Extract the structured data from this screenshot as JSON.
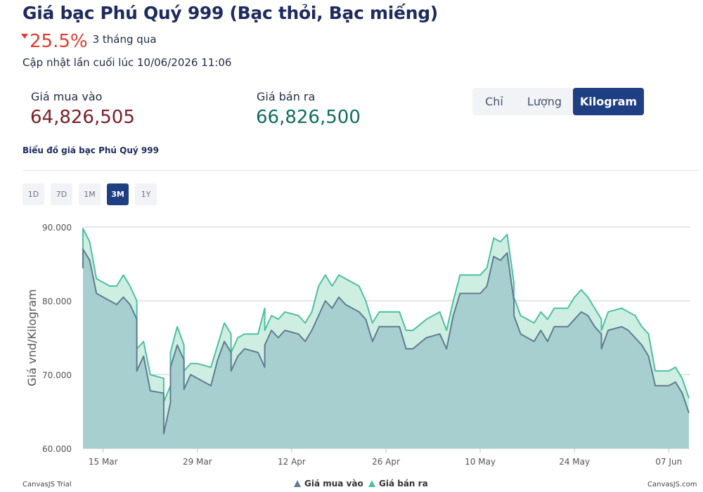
{
  "header": {
    "title": "Giá bạc Phú Quý 999 (Bạc thỏi, Bạc miếng)",
    "change_value": "25.5%",
    "change_period": "3 tháng qua",
    "updated": "Cập nhật lần cuối lúc 10/06/2026 11:06"
  },
  "prices": {
    "buy_label": "Giá mua vào",
    "buy_value": "64,826,505",
    "sell_label": "Giá bán ra",
    "sell_value": "66,826,500"
  },
  "units": {
    "items": [
      "Chỉ",
      "Lượng",
      "Kilogram"
    ],
    "active": "Kilogram"
  },
  "chart_title": "Biểu đồ giá bạc Phú Quý 999",
  "ranges": {
    "items": [
      "1D",
      "7D",
      "1M",
      "3M",
      "1Y"
    ],
    "active": "3M"
  },
  "colors": {
    "buy_line": "#5f7c92",
    "sell_line": "#4fbfa0",
    "buy_fill": "#a8cfcf",
    "sell_fill": "#cdeee0",
    "accent": "#1e3f82"
  },
  "chart_data": {
    "type": "area",
    "ylabel": "Giá vnd/Kilogram",
    "xlabel": "",
    "ylim": [
      60000,
      92000
    ],
    "yticks": [
      60000,
      70000,
      80000,
      90000
    ],
    "ytick_labels": [
      "60.000",
      "70.000",
      "80.000",
      "90.000"
    ],
    "xlim": [
      "2026-03-12",
      "2026-06-10"
    ],
    "xticks": [
      "2026-03-15",
      "2026-03-29",
      "2026-04-12",
      "2026-04-26",
      "2026-05-10",
      "2026-05-24",
      "2026-06-07"
    ],
    "xtick_labels": [
      "15 Mar",
      "29 Mar",
      "12 Apr",
      "26 Apr",
      "10 May",
      "24 May",
      "07 Jun"
    ],
    "grid": true,
    "legend_position": "bottom",
    "series": [
      {
        "name": "Giá mua vào",
        "points": [
          [
            "2026-03-12",
            84400
          ],
          [
            "2026-03-12",
            87000
          ],
          [
            "2026-03-13",
            85500
          ],
          [
            "2026-03-14",
            81000
          ],
          [
            "2026-03-16",
            80000
          ],
          [
            "2026-03-17",
            79500
          ],
          [
            "2026-03-18",
            80500
          ],
          [
            "2026-03-19",
            79500
          ],
          [
            "2026-03-20",
            77500
          ],
          [
            "2026-03-20",
            70500
          ],
          [
            "2026-03-21",
            72500
          ],
          [
            "2026-03-22",
            67800
          ],
          [
            "2026-03-24",
            67500
          ],
          [
            "2026-03-24",
            66800
          ],
          [
            "2026-03-24",
            62000
          ],
          [
            "2026-03-25",
            66200
          ],
          [
            "2026-03-25",
            71000
          ],
          [
            "2026-03-26",
            74000
          ],
          [
            "2026-03-27",
            72000
          ],
          [
            "2026-03-27",
            68000
          ],
          [
            "2026-03-28",
            70000
          ],
          [
            "2026-03-29",
            69500
          ],
          [
            "2026-03-31",
            68500
          ],
          [
            "2026-04-01",
            72000
          ],
          [
            "2026-04-02",
            74500
          ],
          [
            "2026-04-03",
            73000
          ],
          [
            "2026-04-03",
            70500
          ],
          [
            "2026-04-04",
            72500
          ],
          [
            "2026-04-05",
            73500
          ],
          [
            "2026-04-07",
            73000
          ],
          [
            "2026-04-08",
            71000
          ],
          [
            "2026-04-08",
            74000
          ],
          [
            "2026-04-09",
            76000
          ],
          [
            "2026-04-10",
            75000
          ],
          [
            "2026-04-11",
            76000
          ],
          [
            "2026-04-13",
            75500
          ],
          [
            "2026-04-14",
            74500
          ],
          [
            "2026-04-15",
            76000
          ],
          [
            "2026-04-16",
            78000
          ],
          [
            "2026-04-17",
            80000
          ],
          [
            "2026-04-18",
            79000
          ],
          [
            "2026-04-19",
            80500
          ],
          [
            "2026-04-20",
            79500
          ],
          [
            "2026-04-22",
            78500
          ],
          [
            "2026-04-23",
            77500
          ],
          [
            "2026-04-24",
            74500
          ],
          [
            "2026-04-25",
            76500
          ],
          [
            "2026-04-28",
            76500
          ],
          [
            "2026-04-29",
            73500
          ],
          [
            "2026-04-30",
            73500
          ],
          [
            "2026-05-02",
            75000
          ],
          [
            "2026-05-04",
            75500
          ],
          [
            "2026-05-05",
            73500
          ],
          [
            "2026-05-06",
            78000
          ],
          [
            "2026-05-07",
            81000
          ],
          [
            "2026-05-10",
            81000
          ],
          [
            "2026-05-11",
            82000
          ],
          [
            "2026-05-12",
            86000
          ],
          [
            "2026-05-13",
            85500
          ],
          [
            "2026-05-14",
            86500
          ],
          [
            "2026-05-15",
            80000
          ],
          [
            "2026-05-15",
            78000
          ],
          [
            "2026-05-16",
            75500
          ],
          [
            "2026-05-18",
            74500
          ],
          [
            "2026-05-19",
            76000
          ],
          [
            "2026-05-20",
            74500
          ],
          [
            "2026-05-21",
            76500
          ],
          [
            "2026-05-23",
            76500
          ],
          [
            "2026-05-24",
            77500
          ],
          [
            "2026-05-25",
            78500
          ],
          [
            "2026-05-26",
            78000
          ],
          [
            "2026-05-27",
            76500
          ],
          [
            "2026-05-28",
            75500
          ],
          [
            "2026-05-28",
            73500
          ],
          [
            "2026-05-29",
            76000
          ],
          [
            "2026-05-31",
            76500
          ],
          [
            "2026-06-01",
            76000
          ],
          [
            "2026-06-02",
            75000
          ],
          [
            "2026-06-03",
            74000
          ],
          [
            "2026-06-04",
            72500
          ],
          [
            "2026-06-05",
            68500
          ],
          [
            "2026-06-07",
            68500
          ],
          [
            "2026-06-08",
            69000
          ],
          [
            "2026-06-09",
            67500
          ],
          [
            "2026-06-10",
            64800
          ]
        ]
      },
      {
        "name": "Giá bán ra",
        "points": [
          [
            "2026-03-12",
            86000
          ],
          [
            "2026-03-12",
            89800
          ],
          [
            "2026-03-13",
            88000
          ],
          [
            "2026-03-14",
            83000
          ],
          [
            "2026-03-16",
            82000
          ],
          [
            "2026-03-17",
            82000
          ],
          [
            "2026-03-18",
            83500
          ],
          [
            "2026-03-19",
            82000
          ],
          [
            "2026-03-20",
            80000
          ],
          [
            "2026-03-20",
            73500
          ],
          [
            "2026-03-21",
            74500
          ],
          [
            "2026-03-22",
            70000
          ],
          [
            "2026-03-24",
            69500
          ],
          [
            "2026-03-24",
            66300
          ],
          [
            "2026-03-25",
            68500
          ],
          [
            "2026-03-25",
            73000
          ],
          [
            "2026-03-26",
            76500
          ],
          [
            "2026-03-27",
            74000
          ],
          [
            "2026-03-27",
            70500
          ],
          [
            "2026-03-28",
            71500
          ],
          [
            "2026-03-29",
            71500
          ],
          [
            "2026-03-31",
            71000
          ],
          [
            "2026-04-01",
            74000
          ],
          [
            "2026-04-02",
            77000
          ],
          [
            "2026-04-03",
            75500
          ],
          [
            "2026-04-03",
            73000
          ],
          [
            "2026-04-04",
            75000
          ],
          [
            "2026-04-05",
            75500
          ],
          [
            "2026-04-07",
            75500
          ],
          [
            "2026-04-08",
            79000
          ],
          [
            "2026-04-08",
            76000
          ],
          [
            "2026-04-09",
            78000
          ],
          [
            "2026-04-10",
            77500
          ],
          [
            "2026-04-11",
            78500
          ],
          [
            "2026-04-13",
            78000
          ],
          [
            "2026-04-14",
            77000
          ],
          [
            "2026-04-15",
            78500
          ],
          [
            "2026-04-16",
            82000
          ],
          [
            "2026-04-17",
            83500
          ],
          [
            "2026-04-18",
            82000
          ],
          [
            "2026-04-19",
            83500
          ],
          [
            "2026-04-20",
            83000
          ],
          [
            "2026-04-22",
            82000
          ],
          [
            "2026-04-23",
            80000
          ],
          [
            "2026-04-24",
            77000
          ],
          [
            "2026-04-25",
            78500
          ],
          [
            "2026-04-28",
            78500
          ],
          [
            "2026-04-29",
            76000
          ],
          [
            "2026-04-30",
            76000
          ],
          [
            "2026-05-02",
            77500
          ],
          [
            "2026-05-04",
            78500
          ],
          [
            "2026-05-05",
            76000
          ],
          [
            "2026-05-06",
            80000
          ],
          [
            "2026-05-07",
            83500
          ],
          [
            "2026-05-10",
            83500
          ],
          [
            "2026-05-11",
            84500
          ],
          [
            "2026-05-12",
            88500
          ],
          [
            "2026-05-13",
            88000
          ],
          [
            "2026-05-14",
            89000
          ],
          [
            "2026-05-15",
            82500
          ],
          [
            "2026-05-15",
            80500
          ],
          [
            "2026-05-16",
            78000
          ],
          [
            "2026-05-18",
            77000
          ],
          [
            "2026-05-19",
            78500
          ],
          [
            "2026-05-20",
            77500
          ],
          [
            "2026-05-21",
            79000
          ],
          [
            "2026-05-23",
            79000
          ],
          [
            "2026-05-24",
            80500
          ],
          [
            "2026-05-25",
            81500
          ],
          [
            "2026-05-26",
            80500
          ],
          [
            "2026-05-27",
            79000
          ],
          [
            "2026-05-28",
            77500
          ],
          [
            "2026-05-28",
            76000
          ],
          [
            "2026-05-29",
            78500
          ],
          [
            "2026-05-31",
            79000
          ],
          [
            "2026-06-01",
            78500
          ],
          [
            "2026-06-02",
            78000
          ],
          [
            "2026-06-03",
            76500
          ],
          [
            "2026-06-04",
            75500
          ],
          [
            "2026-06-05",
            70500
          ],
          [
            "2026-06-07",
            70500
          ],
          [
            "2026-06-08",
            71000
          ],
          [
            "2026-06-09",
            69500
          ],
          [
            "2026-06-10",
            66800
          ]
        ]
      }
    ]
  },
  "footer": {
    "trial_left": "CanvasJS Trial",
    "trial_right": "CanvasJS.com"
  }
}
